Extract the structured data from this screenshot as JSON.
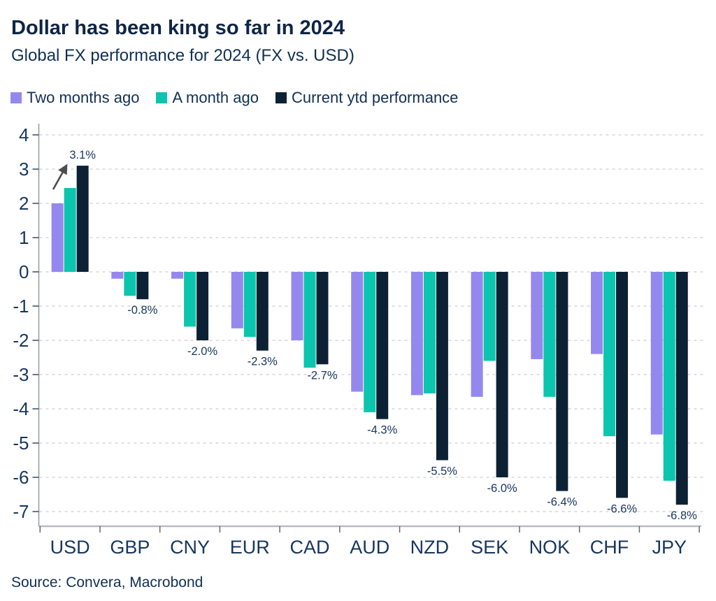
{
  "header": {
    "title": "Dollar has been king so far in 2024",
    "subtitle": "Global FX performance for 2024 (FX vs. USD)"
  },
  "source": "Source: Convera, Macrobond",
  "colors": {
    "title_text": "#0e2545",
    "body_text": "#113054",
    "axis_text": "#17365f",
    "gridline": "#d6d6d6",
    "axis_line": "#9aa0a6",
    "spine": "#b7bcc1",
    "spine_tick": "#5f6a72",
    "arrow": "#4d4d4d",
    "purple": "#9488ef",
    "teal": "#0cc5ae",
    "navy": "#0d2134"
  },
  "chart_data": {
    "type": "bar",
    "title": "Dollar has been king so far in 2024",
    "subtitle": "Global FX performance for 2024 (FX vs. USD)",
    "categories": [
      "USD",
      "GBP",
      "CNY",
      "EUR",
      "CAD",
      "AUD",
      "NZD",
      "SEK",
      "NOK",
      "CHF",
      "JPY"
    ],
    "series": [
      {
        "name": "Two months ago",
        "color": "#9488ef",
        "values": [
          2.0,
          -0.2,
          -0.2,
          -1.65,
          -2.0,
          -3.5,
          -3.6,
          -3.65,
          -2.55,
          -2.4,
          -4.75
        ]
      },
      {
        "name": "A month ago",
        "color": "#0cc5ae",
        "values": [
          2.45,
          -0.7,
          -1.6,
          -1.9,
          -2.8,
          -4.1,
          -3.55,
          -2.6,
          -3.65,
          -4.8,
          -6.1
        ]
      },
      {
        "name": "Current ytd performance",
        "color": "#0d2134",
        "values": [
          3.1,
          -0.8,
          -2.0,
          -2.3,
          -2.7,
          -4.3,
          -5.5,
          -6.0,
          -6.4,
          -6.6,
          -6.8
        ]
      }
    ],
    "value_labels": [
      "3.1%",
      "-0.8%",
      "-2.0%",
      "-2.3%",
      "-2.7%",
      "-4.3%",
      "-5.5%",
      "-6.0%",
      "-6.4%",
      "-6.6%",
      "-6.8%"
    ],
    "value_labels_on_series": "Current ytd performance",
    "yticks": [
      4,
      3,
      2,
      1,
      0,
      -1,
      -2,
      -3,
      -4,
      -5,
      -6,
      -7
    ],
    "ylim": [
      -7.4,
      4.3
    ],
    "xlabel": "",
    "ylabel": "",
    "grid": "horizontal-dashed",
    "legend_position": "top-left",
    "annotation": {
      "type": "arrow",
      "target_category": "USD",
      "target_series": "Current ytd performance"
    }
  }
}
